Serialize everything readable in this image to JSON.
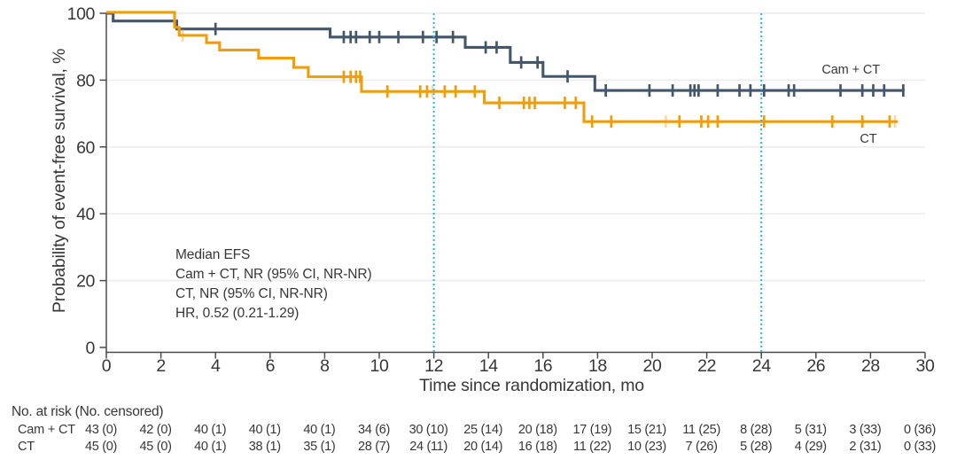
{
  "chart_data": {
    "type": "line",
    "subtype": "kaplan-meier-step",
    "title": "",
    "xlabel": "Time since randomization, mo",
    "ylabel": "Probability of event-free survival, %",
    "xlim": [
      0,
      30
    ],
    "ylim": [
      0,
      100
    ],
    "xticks": [
      0,
      2,
      4,
      6,
      8,
      10,
      12,
      14,
      16,
      18,
      20,
      22,
      24,
      26,
      28,
      30
    ],
    "yticks": [
      0,
      20,
      40,
      60,
      80,
      100
    ],
    "grid": "horizontal-only",
    "reference_lines_x": [
      12,
      24
    ],
    "annotation": [
      "Median EFS",
      "Cam + CT, NR (95% CI, NR-NR)",
      "CT, NR (95% CI, NR-NR)",
      "HR, 0.52 (0.21-1.29)"
    ],
    "series": [
      {
        "name": "Cam + CT",
        "color": "#44576A",
        "end_time": 29.25,
        "steps": [
          [
            0,
            100
          ],
          [
            0.25,
            97.7
          ],
          [
            2.58,
            95.3
          ],
          [
            8.2,
            92.9
          ],
          [
            13.15,
            89.8
          ],
          [
            14.8,
            85.3
          ],
          [
            16.0,
            81.1
          ],
          [
            17.9,
            76.9
          ]
        ],
        "censors": [
          [
            4.0,
            95.3
          ],
          [
            8.7,
            92.9
          ],
          [
            8.95,
            92.9
          ],
          [
            9.15,
            92.9
          ],
          [
            9.65,
            92.9
          ],
          [
            10.0,
            92.9
          ],
          [
            10.7,
            92.9
          ],
          [
            11.6,
            92.9
          ],
          [
            12.1,
            92.9
          ],
          [
            12.7,
            92.9
          ],
          [
            13.9,
            89.8
          ],
          [
            14.3,
            89.8
          ],
          [
            15.2,
            85.3
          ],
          [
            15.8,
            85.3
          ],
          [
            16.9,
            81.1
          ],
          [
            18.3,
            76.9
          ],
          [
            19.9,
            76.9
          ],
          [
            20.75,
            76.9
          ],
          [
            21.4,
            76.9
          ],
          [
            21.55,
            76.9
          ],
          [
            21.7,
            76.9
          ],
          [
            22.4,
            76.9
          ],
          [
            23.2,
            76.9
          ],
          [
            23.6,
            76.9
          ],
          [
            24.1,
            76.9
          ],
          [
            25.0,
            76.9
          ],
          [
            25.2,
            76.9
          ],
          [
            26.9,
            76.9
          ],
          [
            27.7,
            76.9
          ],
          [
            28.1,
            76.9
          ],
          [
            28.5,
            76.9
          ],
          [
            29.2,
            76.9
          ]
        ],
        "censors_light": []
      },
      {
        "name": "CT",
        "color": "#F09D0C",
        "end_time": 29.0,
        "steps": [
          [
            0,
            100.3
          ],
          [
            2.5,
            95.8
          ],
          [
            2.67,
            93.4
          ],
          [
            3.67,
            91.2
          ],
          [
            4.15,
            89.0
          ],
          [
            5.58,
            86.6
          ],
          [
            6.87,
            83.8
          ],
          [
            7.4,
            81.0
          ],
          [
            9.35,
            76.6
          ],
          [
            13.85,
            73.2
          ],
          [
            17.5,
            67.6
          ]
        ],
        "censors": [
          [
            8.7,
            81.0
          ],
          [
            8.95,
            81.0
          ],
          [
            9.15,
            81.0
          ],
          [
            9.3,
            81.0
          ],
          [
            10.3,
            76.6
          ],
          [
            11.5,
            76.6
          ],
          [
            11.75,
            76.6
          ],
          [
            12.4,
            76.6
          ],
          [
            12.8,
            76.6
          ],
          [
            13.5,
            76.6
          ],
          [
            14.4,
            73.2
          ],
          [
            15.3,
            73.2
          ],
          [
            15.5,
            73.2
          ],
          [
            15.7,
            73.2
          ],
          [
            16.8,
            73.2
          ],
          [
            17.2,
            73.2
          ],
          [
            17.8,
            67.6
          ],
          [
            18.5,
            67.6
          ],
          [
            21.0,
            67.6
          ],
          [
            21.8,
            67.6
          ],
          [
            22.05,
            67.6
          ],
          [
            22.4,
            67.6
          ],
          [
            24.1,
            67.6
          ],
          [
            26.6,
            67.6
          ],
          [
            27.7,
            67.6
          ],
          [
            28.7,
            67.6
          ]
        ],
        "censors_light": [
          [
            2.8,
            93.4
          ],
          [
            11.95,
            76.6
          ],
          [
            20.5,
            67.6
          ],
          [
            28.9,
            67.6
          ]
        ]
      }
    ],
    "risk_table": {
      "header": "No. at risk (No. censored)",
      "times": [
        0,
        2,
        4,
        6,
        8,
        10,
        12,
        14,
        16,
        18,
        20,
        22,
        24,
        26,
        28,
        30
      ],
      "rows": [
        {
          "label": "Cam + CT",
          "values": [
            "43 (0)",
            "42 (0)",
            "40 (1)",
            "40 (1)",
            "40 (1)",
            "34 (6)",
            "30 (10)",
            "25 (14)",
            "20 (18)",
            "17 (19)",
            "15 (21)",
            "11 (25)",
            "8 (28)",
            "5 (31)",
            "3 (33)",
            "0 (36)"
          ]
        },
        {
          "label": "CT",
          "values": [
            "45 (0)",
            "45 (0)",
            "40 (1)",
            "38 (1)",
            "35 (1)",
            "28 (7)",
            "24 (11)",
            "20 (14)",
            "16 (18)",
            "11 (22)",
            "10 (23)",
            "7 (26)",
            "5 (28)",
            "4 (29)",
            "2 (31)",
            "0 (33)"
          ]
        }
      ]
    },
    "colors": {
      "cam_ct_curve": "#44576A",
      "ct_curve": "#F09D0C",
      "reference_line": "#2FB3E7",
      "grid_line": "#ECECEC",
      "axis_line": "#4A4A4A",
      "text": "#373737"
    }
  }
}
